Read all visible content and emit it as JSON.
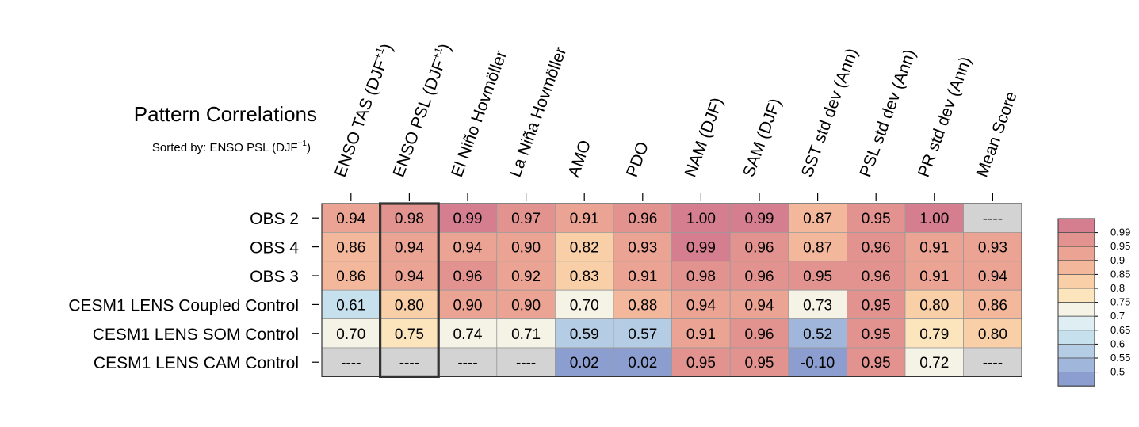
{
  "title": "Pattern Correlations",
  "subtitle": "Sorted by: ENSO PSL (DJF",
  "subtitle_sup": "+1",
  "subtitle_end": ")",
  "chart_data": {
    "type": "heatmap",
    "columns": [
      {
        "label": "ENSO TAS (DJF",
        "sup": "+1",
        "end": ")"
      },
      {
        "label": "ENSO PSL (DJF",
        "sup": "+1",
        "end": ")"
      },
      {
        "label": "El Niño Hovmöller",
        "sup": "",
        "end": ""
      },
      {
        "label": "La Niña Hovmöller",
        "sup": "",
        "end": ""
      },
      {
        "label": "AMO",
        "sup": "",
        "end": ""
      },
      {
        "label": "PDO",
        "sup": "",
        "end": ""
      },
      {
        "label": "NAM (DJF)",
        "sup": "",
        "end": ""
      },
      {
        "label": "SAM (DJF)",
        "sup": "",
        "end": ""
      },
      {
        "label": "SST std dev (Ann)",
        "sup": "",
        "end": ""
      },
      {
        "label": "PSL std dev (Ann)",
        "sup": "",
        "end": ""
      },
      {
        "label": "PR std dev (Ann)",
        "sup": "",
        "end": ""
      },
      {
        "label": "Mean Score",
        "sup": "",
        "end": ""
      }
    ],
    "rows": [
      "OBS 2",
      "OBS 4",
      "OBS 3",
      "CESM1 LENS Coupled Control",
      "CESM1 LENS SOM Control",
      "CESM1 LENS CAM Control"
    ],
    "values": [
      [
        "0.94",
        "0.98",
        "0.99",
        "0.97",
        "0.91",
        "0.96",
        "1.00",
        "0.99",
        "0.87",
        "0.95",
        "1.00",
        "----"
      ],
      [
        "0.86",
        "0.94",
        "0.94",
        "0.90",
        "0.82",
        "0.93",
        "0.99",
        "0.96",
        "0.87",
        "0.96",
        "0.91",
        "0.93"
      ],
      [
        "0.86",
        "0.94",
        "0.96",
        "0.92",
        "0.83",
        "0.91",
        "0.98",
        "0.96",
        "0.95",
        "0.96",
        "0.91",
        "0.94"
      ],
      [
        "0.61",
        "0.80",
        "0.90",
        "0.90",
        "0.70",
        "0.88",
        "0.94",
        "0.94",
        "0.73",
        "0.95",
        "0.80",
        "0.86"
      ],
      [
        "0.70",
        "0.75",
        "0.74",
        "0.71",
        "0.59",
        "0.57",
        "0.91",
        "0.96",
        "0.52",
        "0.95",
        "0.79",
        "0.80"
      ],
      [
        "----",
        "----",
        "----",
        "----",
        "0.02",
        "0.02",
        "0.95",
        "0.95",
        "-0.10",
        "0.95",
        "0.72",
        "----"
      ]
    ],
    "highlight_column_index": 1,
    "missing_color": "#d3d3d3",
    "colorbar": {
      "labels": [
        "0.99",
        "0.95",
        "0.9",
        "0.85",
        "0.8",
        "0.75",
        "0.7",
        "0.65",
        "0.6",
        "0.55",
        "0.5"
      ],
      "colors": [
        "#d47e8f",
        "#e2938f",
        "#eba394",
        "#f3b79b",
        "#f9cfa8",
        "#fce5bd",
        "#f4f3e6",
        "#deeef2",
        "#c7e0ee",
        "#b4cde5",
        "#a0b6da",
        "#8c9ed0"
      ]
    }
  }
}
